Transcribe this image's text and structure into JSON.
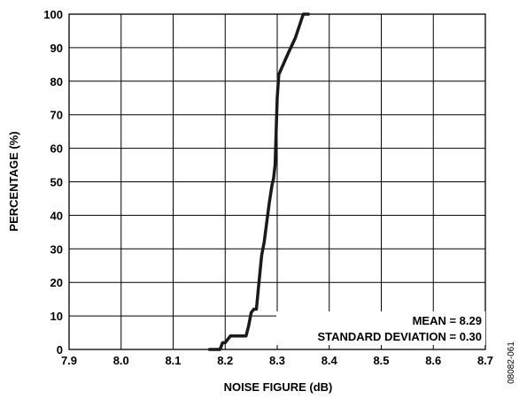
{
  "chart_data": {
    "type": "line",
    "xlabel": "NOISE FIGURE (dB)",
    "ylabel": "PERCENTAGE (%)",
    "xlim": [
      7.9,
      8.7
    ],
    "ylim": [
      0,
      100
    ],
    "x_ticks": [
      "7.9",
      "8.0",
      "8.1",
      "8.2",
      "8.3",
      "8.4",
      "8.5",
      "8.6",
      "8.7"
    ],
    "y_ticks": [
      "0",
      "10",
      "20",
      "30",
      "40",
      "50",
      "60",
      "70",
      "80",
      "90",
      "100"
    ],
    "grid": true,
    "annotations": [
      "MEAN = 8.29",
      "STANDARD DEVIATION = 0.30"
    ],
    "figure_code": "08082-061",
    "series": [
      {
        "color": "#1a1a1a",
        "x": [
          8.17,
          8.19,
          8.195,
          8.2,
          8.21,
          8.22,
          8.24,
          8.245,
          8.25,
          8.255,
          8.26,
          8.265,
          8.27,
          8.275,
          8.28,
          8.285,
          8.29,
          8.293,
          8.296,
          8.298,
          8.3,
          8.303,
          8.306,
          8.32,
          8.335,
          8.35,
          8.36
        ],
        "y": [
          0,
          0,
          2,
          2,
          4,
          4,
          4,
          7,
          11,
          12,
          12,
          20,
          28,
          32,
          38,
          44,
          49,
          51,
          55,
          65,
          75,
          82,
          83,
          88,
          93,
          100,
          100
        ]
      }
    ]
  }
}
